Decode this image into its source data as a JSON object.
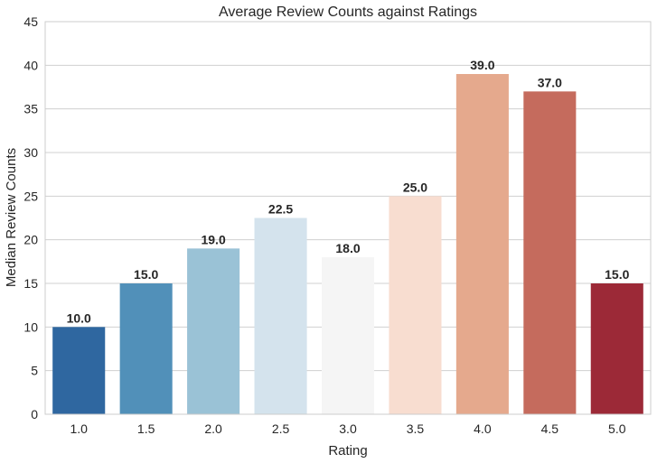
{
  "chart_data": {
    "type": "bar",
    "title": "Average Review Counts against Ratings",
    "xlabel": "Rating",
    "ylabel": "Median Review Counts",
    "categories": [
      "1.0",
      "1.5",
      "2.0",
      "2.5",
      "3.0",
      "3.5",
      "4.0",
      "4.5",
      "5.0"
    ],
    "values": [
      10.0,
      15.0,
      19.0,
      22.5,
      18.0,
      25.0,
      39.0,
      37.0,
      15.0
    ],
    "value_labels": [
      "10.0",
      "15.0",
      "19.0",
      "22.5",
      "18.0",
      "25.0",
      "39.0",
      "37.0",
      "15.0"
    ],
    "colors": [
      "#2f67a0",
      "#5190b9",
      "#9ac2d6",
      "#d4e3ed",
      "#f5f5f5",
      "#f8ddd0",
      "#e5a98d",
      "#c56b5d",
      "#9c2937"
    ],
    "ylim": [
      0,
      45
    ],
    "yticks": [
      0,
      5,
      10,
      15,
      20,
      25,
      30,
      35,
      40,
      45
    ],
    "ytick_labels": [
      "0",
      "5",
      "10",
      "15",
      "20",
      "25",
      "30",
      "35",
      "40",
      "45"
    ],
    "grid": "horizontal",
    "legend": "none",
    "gridline_color": "#d0d0d0",
    "frame_color": "#cccccc"
  }
}
